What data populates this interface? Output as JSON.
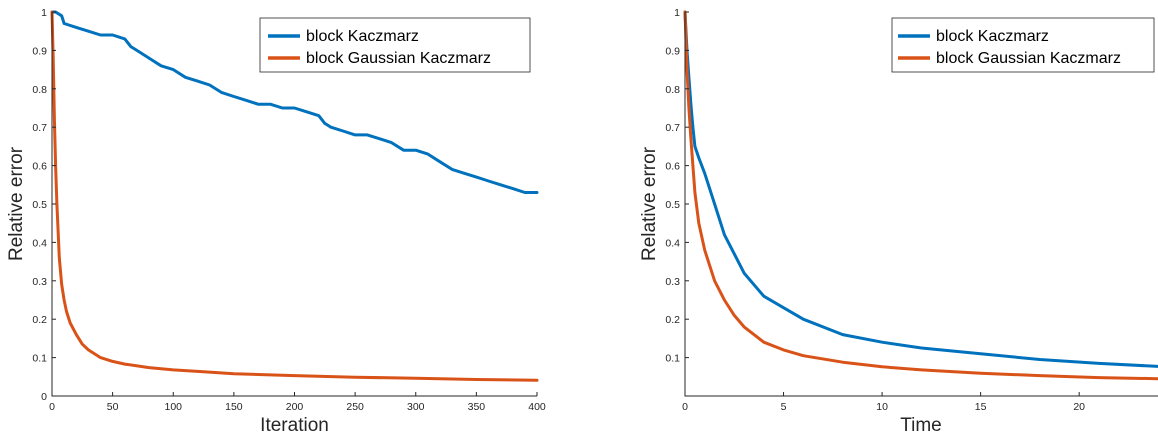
{
  "chart_data": [
    {
      "type": "line",
      "xlabel": "Iteration",
      "ylabel": "Relative error",
      "xlim": [
        0,
        400
      ],
      "ylim": [
        0,
        1
      ],
      "xticks": [
        0,
        50,
        100,
        150,
        200,
        250,
        300,
        350,
        400
      ],
      "yticks": [
        0,
        0.1,
        0.2,
        0.3,
        0.4,
        0.5,
        0.6,
        0.7,
        0.8,
        0.9,
        1
      ],
      "xtick_labels": [
        "0",
        "50",
        "100",
        "150",
        "200",
        "250",
        "300",
        "350",
        "400"
      ],
      "ytick_labels": [
        "0",
        "0.1",
        "0.2",
        "0.3",
        "0.4",
        "0.5",
        "0.6",
        "0.7",
        "0.8",
        "0.9",
        "1"
      ],
      "grid": false,
      "legend_position": "top-right",
      "series": [
        {
          "name": "block Kaczmarz",
          "color": "#0072BD",
          "x": [
            0,
            1,
            3,
            8,
            10,
            20,
            30,
            40,
            50,
            60,
            65,
            70,
            80,
            90,
            100,
            110,
            120,
            130,
            140,
            150,
            160,
            170,
            180,
            190,
            200,
            210,
            220,
            225,
            230,
            240,
            250,
            260,
            270,
            280,
            290,
            300,
            310,
            320,
            330,
            340,
            350,
            360,
            370,
            380,
            390,
            400
          ],
          "y": [
            1.0,
            1.0,
            1.0,
            0.99,
            0.97,
            0.96,
            0.95,
            0.94,
            0.94,
            0.93,
            0.91,
            0.9,
            0.88,
            0.86,
            0.85,
            0.83,
            0.82,
            0.81,
            0.79,
            0.78,
            0.77,
            0.76,
            0.76,
            0.75,
            0.75,
            0.74,
            0.73,
            0.71,
            0.7,
            0.69,
            0.68,
            0.68,
            0.67,
            0.66,
            0.64,
            0.64,
            0.63,
            0.61,
            0.59,
            0.58,
            0.57,
            0.56,
            0.55,
            0.54,
            0.53,
            0.53
          ]
        },
        {
          "name": "block Gaussian Kaczmarz",
          "color": "#D95319",
          "x": [
            0,
            1,
            2,
            3,
            4,
            5,
            6,
            8,
            10,
            12,
            15,
            20,
            25,
            30,
            40,
            50,
            60,
            80,
            100,
            125,
            150,
            200,
            250,
            300,
            350,
            400
          ],
          "y": [
            1.0,
            0.88,
            0.72,
            0.6,
            0.5,
            0.43,
            0.36,
            0.29,
            0.25,
            0.22,
            0.19,
            0.16,
            0.135,
            0.12,
            0.1,
            0.09,
            0.083,
            0.074,
            0.068,
            0.063,
            0.058,
            0.053,
            0.049,
            0.046,
            0.043,
            0.041
          ]
        }
      ]
    },
    {
      "type": "line",
      "xlabel": "Time",
      "ylabel": "Relative error",
      "xlim": [
        0,
        24
      ],
      "ylim": [
        0,
        1
      ],
      "xticks": [
        0,
        5,
        10,
        15,
        20
      ],
      "yticks": [
        0.1,
        0.2,
        0.3,
        0.4,
        0.5,
        0.6,
        0.7,
        0.8,
        0.9,
        1
      ],
      "xtick_labels": [
        "0",
        "5",
        "10",
        "15",
        "20"
      ],
      "ytick_labels": [
        "0.1",
        "0.2",
        "0.3",
        "0.4",
        "0.5",
        "0.6",
        "0.7",
        "0.8",
        "0.9",
        "1"
      ],
      "grid": false,
      "legend_position": "top-right",
      "series": [
        {
          "name": "block Kaczmarz",
          "color": "#0072BD",
          "x": [
            0,
            0.1,
            0.2,
            0.3,
            0.4,
            0.5,
            0.7,
            1.0,
            1.5,
            2.0,
            2.5,
            3.0,
            4.0,
            5.0,
            6.0,
            8.0,
            10.0,
            12.0,
            15.0,
            18.0,
            21.0,
            24.0
          ],
          "y": [
            1.0,
            0.9,
            0.83,
            0.76,
            0.7,
            0.65,
            0.62,
            0.58,
            0.5,
            0.42,
            0.37,
            0.32,
            0.26,
            0.23,
            0.2,
            0.16,
            0.14,
            0.125,
            0.11,
            0.095,
            0.085,
            0.077
          ]
        },
        {
          "name": "block Gaussian Kaczmarz",
          "color": "#D95319",
          "x": [
            0,
            0.1,
            0.2,
            0.3,
            0.4,
            0.5,
            0.7,
            1.0,
            1.5,
            2.0,
            2.5,
            3.0,
            4.0,
            5.0,
            6.0,
            8.0,
            10.0,
            12.0,
            15.0,
            18.0,
            21.0,
            24.0
          ],
          "y": [
            1.0,
            0.85,
            0.75,
            0.67,
            0.6,
            0.53,
            0.45,
            0.38,
            0.3,
            0.25,
            0.21,
            0.18,
            0.14,
            0.12,
            0.105,
            0.088,
            0.076,
            0.068,
            0.059,
            0.053,
            0.048,
            0.045
          ]
        }
      ]
    }
  ]
}
